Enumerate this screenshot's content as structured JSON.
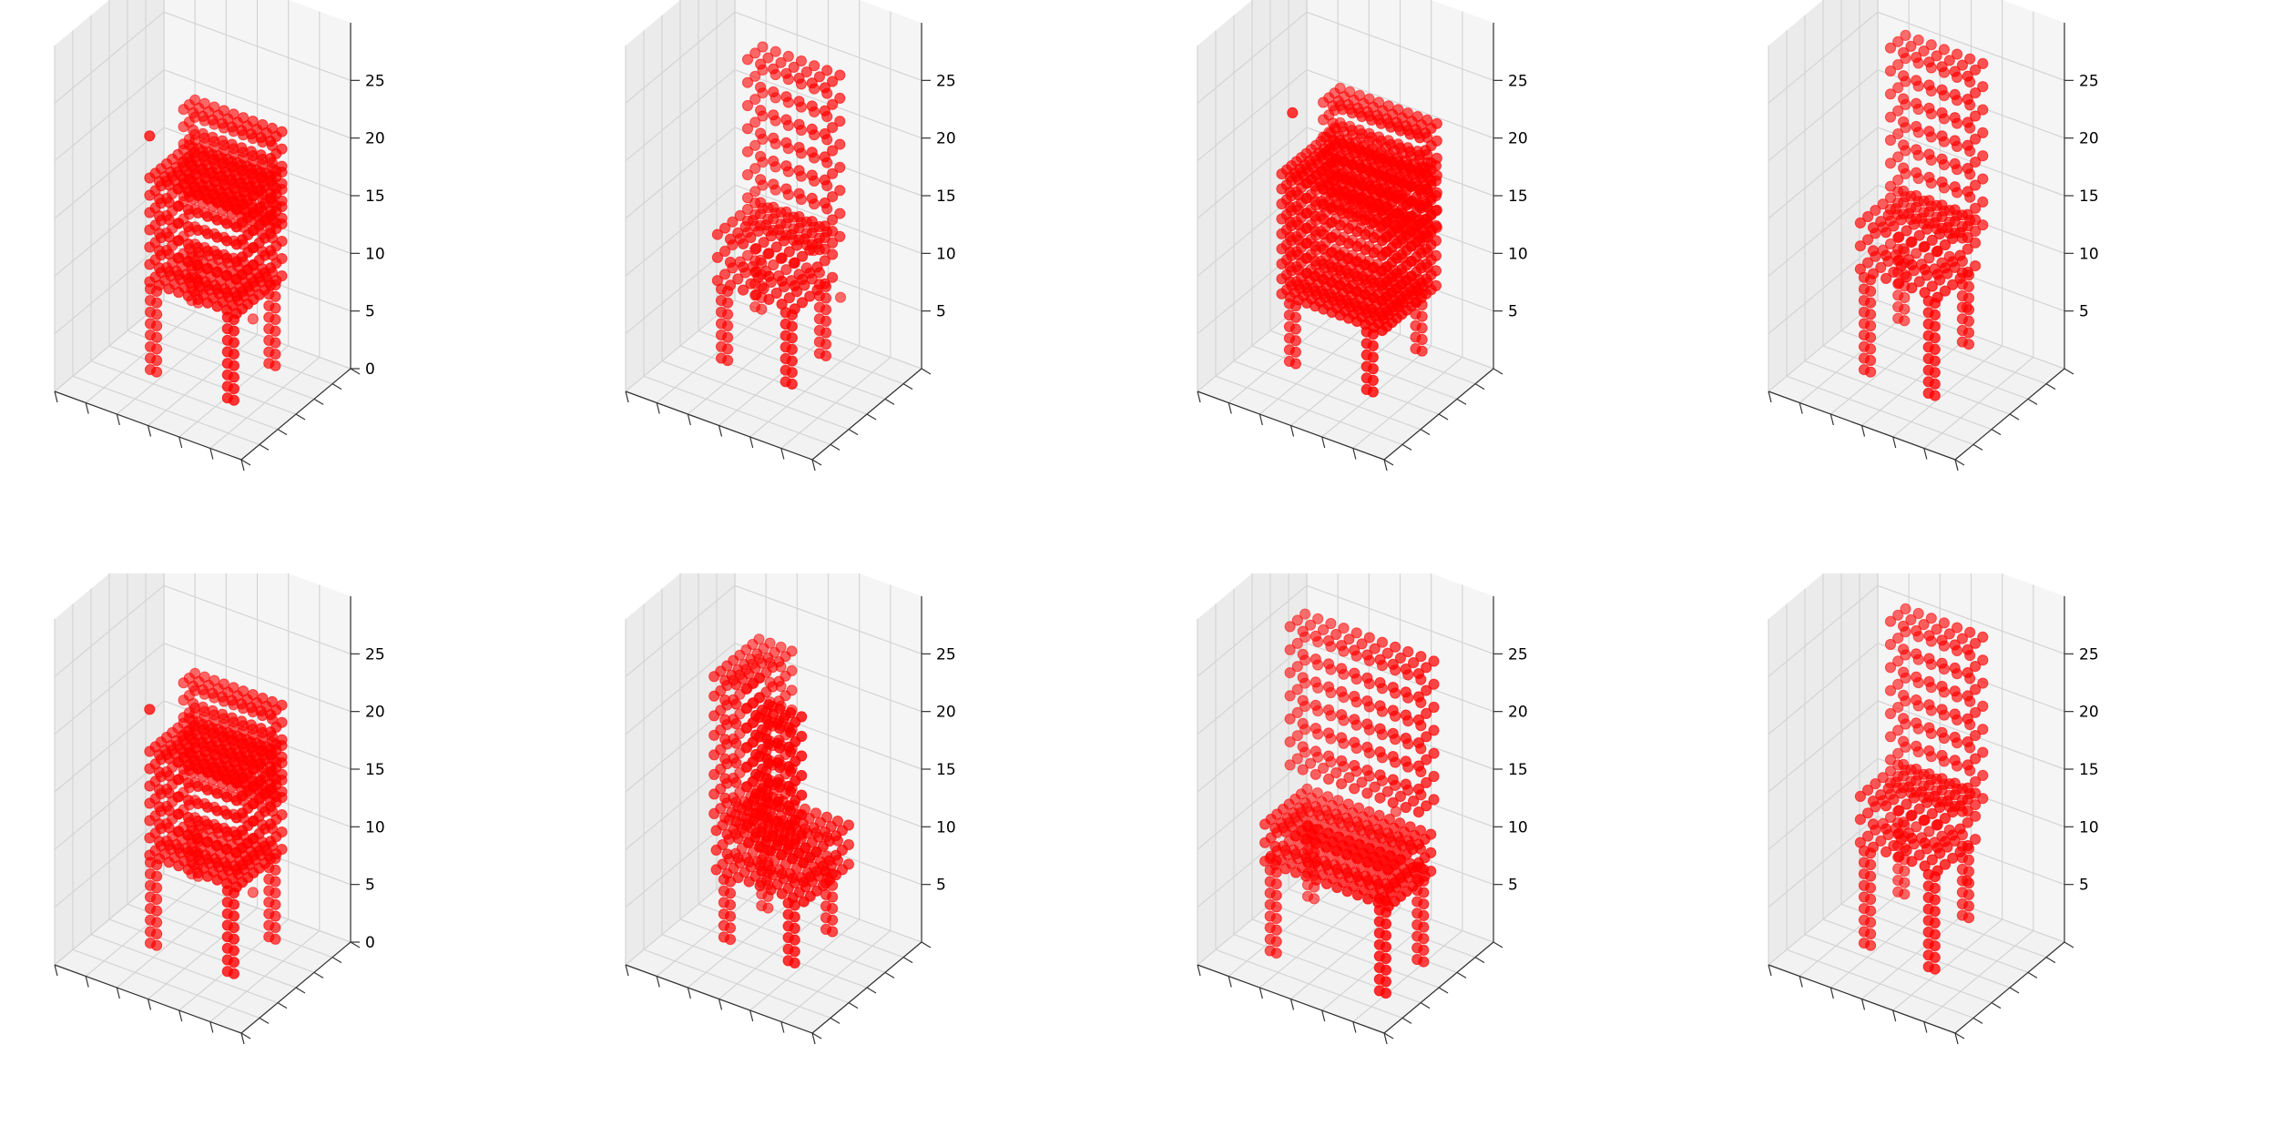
{
  "figure": {
    "background": "#ffffff"
  },
  "chart_data": [
    {
      "type": "scatter",
      "shape": "sofa",
      "marker_color": "#ff0000",
      "zticks": [
        0,
        5,
        10,
        15,
        20,
        25
      ]
    },
    {
      "type": "scatter",
      "shape": "chair-sparse",
      "marker_color": "#ff0000",
      "zticks": [
        5,
        10,
        15,
        20,
        25
      ]
    },
    {
      "type": "scatter",
      "shape": "sofa-dense",
      "marker_color": "#ff0000",
      "zticks": [
        5,
        10,
        15,
        20,
        25
      ]
    },
    {
      "type": "scatter",
      "shape": "chair-tall",
      "marker_color": "#ff0000",
      "zticks": [
        5,
        10,
        15,
        20,
        25
      ]
    },
    {
      "type": "scatter",
      "shape": "sofa",
      "marker_color": "#ff0000",
      "zticks": [
        0,
        5,
        10,
        15,
        20,
        25
      ]
    },
    {
      "type": "scatter",
      "shape": "chair-wide",
      "marker_color": "#ff0000",
      "zticks": [
        5,
        10,
        15,
        20,
        25
      ]
    },
    {
      "type": "scatter",
      "shape": "chair-front",
      "marker_color": "#ff0000",
      "zticks": [
        5,
        10,
        15,
        20,
        25
      ]
    },
    {
      "type": "scatter",
      "shape": "chair-tall",
      "marker_color": "#ff0000",
      "zticks": [
        5,
        10,
        15,
        20,
        25
      ]
    }
  ]
}
